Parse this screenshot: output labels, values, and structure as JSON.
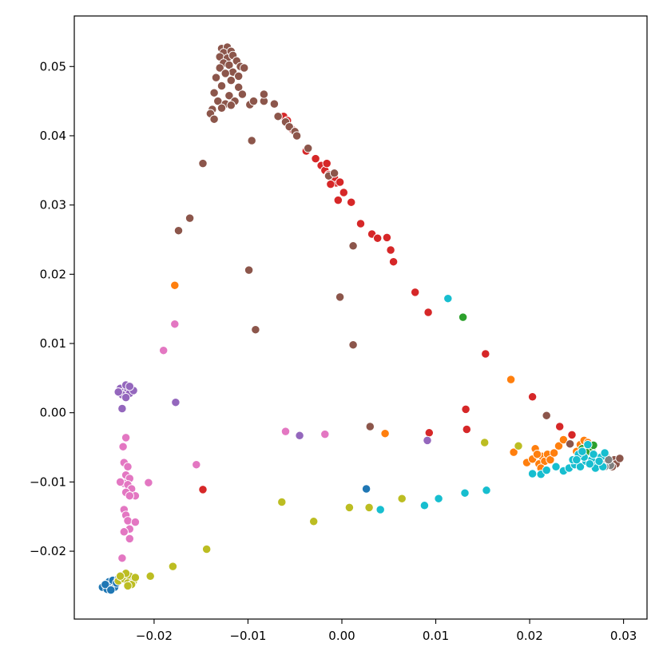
{
  "chart_data": {
    "type": "scatter",
    "title": "",
    "xlabel": "",
    "ylabel": "",
    "xlim": [
      -0.0285,
      0.0325
    ],
    "ylim": [
      -0.0298,
      0.0573
    ],
    "grid": false,
    "legend": "none",
    "x_ticks": [
      {
        "value": -0.02,
        "label": "−0.02"
      },
      {
        "value": -0.01,
        "label": "−0.01"
      },
      {
        "value": 0.0,
        "label": "0.00"
      },
      {
        "value": 0.01,
        "label": "0.01"
      },
      {
        "value": 0.02,
        "label": "0.02"
      },
      {
        "value": 0.03,
        "label": "0.03"
      }
    ],
    "y_ticks": [
      {
        "value": -0.02,
        "label": "−0.02"
      },
      {
        "value": -0.01,
        "label": "−0.01"
      },
      {
        "value": 0.0,
        "label": "0.00"
      },
      {
        "value": 0.01,
        "label": "0.01"
      },
      {
        "value": 0.02,
        "label": "0.02"
      },
      {
        "value": 0.03,
        "label": "0.03"
      },
      {
        "value": 0.04,
        "label": "0.04"
      },
      {
        "value": 0.05,
        "label": "0.05"
      }
    ],
    "series": [
      {
        "color": "#1f77b4",
        "points": [
          [
            -0.0255,
            -0.0252
          ],
          [
            -0.025,
            -0.0255
          ],
          [
            -0.0246,
            -0.0248
          ],
          [
            -0.0242,
            -0.0252
          ],
          [
            -0.0248,
            -0.0244
          ],
          [
            -0.0252,
            -0.0248
          ],
          [
            -0.0244,
            -0.0242
          ],
          [
            -0.024,
            -0.0246
          ],
          [
            -0.0238,
            -0.024
          ],
          [
            -0.0246,
            -0.0256
          ],
          [
            -0.0234,
            -0.021
          ],
          [
            0.0026,
            -0.011
          ]
        ]
      },
      {
        "color": "#ff7f0e",
        "points": [
          [
            -0.0178,
            0.0184
          ],
          [
            0.0046,
            -0.003
          ],
          [
            0.018,
            0.0048
          ],
          [
            0.0183,
            -0.0057
          ],
          [
            0.0197,
            -0.0072
          ],
          [
            0.0203,
            -0.0067
          ],
          [
            0.0206,
            -0.0052
          ],
          [
            0.021,
            -0.0074
          ],
          [
            0.0213,
            -0.0063
          ],
          [
            0.0216,
            -0.007
          ],
          [
            0.0219,
            -0.006
          ],
          [
            0.0222,
            -0.0068
          ],
          [
            0.0208,
            -0.006
          ],
          [
            0.0226,
            -0.0058
          ],
          [
            0.0231,
            -0.0048
          ],
          [
            0.0236,
            -0.0039
          ],
          [
            0.0246,
            -0.0068
          ],
          [
            0.0254,
            -0.0046
          ],
          [
            0.0258,
            -0.004
          ],
          [
            0.0262,
            -0.0043
          ],
          [
            0.025,
            -0.0056
          ],
          [
            0.0212,
            -0.008
          ]
        ]
      },
      {
        "color": "#2ca02c",
        "points": [
          [
            0.0129,
            0.0138
          ],
          [
            0.0256,
            -0.0052
          ],
          [
            0.0262,
            -0.0047
          ],
          [
            0.0266,
            -0.0053
          ],
          [
            0.026,
            -0.0057
          ],
          [
            0.0268,
            -0.0047
          ]
        ]
      },
      {
        "color": "#d62728",
        "points": [
          [
            -0.0038,
            0.0378
          ],
          [
            -0.0028,
            0.0367
          ],
          [
            -0.0022,
            0.0357
          ],
          [
            -0.0018,
            0.035
          ],
          [
            -0.0014,
            0.0344
          ],
          [
            -0.001,
            0.0338
          ],
          [
            -0.0006,
            0.0332
          ],
          [
            -0.0016,
            0.036
          ],
          [
            -0.0008,
            0.034
          ],
          [
            -0.0002,
            0.0333
          ],
          [
            -0.0012,
            0.033
          ],
          [
            0.0002,
            0.0318
          ],
          [
            0.001,
            0.0304
          ],
          [
            -0.0004,
            0.0307
          ],
          [
            0.002,
            0.0273
          ],
          [
            0.0032,
            0.0258
          ],
          [
            0.0038,
            0.0252
          ],
          [
            0.0048,
            0.0253
          ],
          [
            0.0052,
            0.0235
          ],
          [
            0.0055,
            0.0218
          ],
          [
            0.0078,
            0.0174
          ],
          [
            0.0092,
            0.0145
          ],
          [
            0.0153,
            0.0085
          ],
          [
            0.0132,
            0.0005
          ],
          [
            0.0093,
            -0.0029
          ],
          [
            0.0133,
            -0.0024
          ],
          [
            0.0203,
            0.0023
          ],
          [
            0.0232,
            -0.002
          ],
          [
            0.0245,
            -0.0032
          ],
          [
            -0.0148,
            -0.0111
          ],
          [
            -0.0062,
            0.0428
          ],
          [
            -0.0058,
            0.0422
          ],
          [
            -0.0052,
            0.0408
          ]
        ]
      },
      {
        "color": "#9467bd",
        "points": [
          [
            -0.0236,
            0.0035
          ],
          [
            -0.0232,
            0.003
          ],
          [
            -0.0228,
            0.0034
          ],
          [
            -0.0234,
            0.0026
          ],
          [
            -0.0226,
            0.0028
          ],
          [
            -0.023,
            0.004
          ],
          [
            -0.0238,
            0.003
          ],
          [
            -0.0222,
            0.0032
          ],
          [
            -0.023,
            0.0022
          ],
          [
            -0.0226,
            0.0038
          ],
          [
            -0.0234,
            0.0006
          ],
          [
            -0.0177,
            0.0015
          ],
          [
            -0.0045,
            -0.0033
          ],
          [
            0.0091,
            -0.004
          ]
        ]
      },
      {
        "color": "#8c564b",
        "points": [
          [
            -0.0128,
            0.0526
          ],
          [
            -0.0122,
            0.0528
          ],
          [
            -0.0126,
            0.052
          ],
          [
            -0.0118,
            0.0522
          ],
          [
            -0.013,
            0.0514
          ],
          [
            -0.0122,
            0.0512
          ],
          [
            -0.0116,
            0.0516
          ],
          [
            -0.0126,
            0.0505
          ],
          [
            -0.012,
            0.0502
          ],
          [
            -0.0112,
            0.0508
          ],
          [
            -0.013,
            0.0498
          ],
          [
            -0.0108,
            0.05
          ],
          [
            -0.0104,
            0.0498
          ],
          [
            -0.0116,
            0.0492
          ],
          [
            -0.0124,
            0.049
          ],
          [
            -0.011,
            0.0486
          ],
          [
            -0.0134,
            0.0484
          ],
          [
            -0.0118,
            0.048
          ],
          [
            -0.0128,
            0.0472
          ],
          [
            -0.011,
            0.047
          ],
          [
            -0.0136,
            0.0462
          ],
          [
            -0.012,
            0.0458
          ],
          [
            -0.0106,
            0.046
          ],
          [
            -0.0132,
            0.045
          ],
          [
            -0.0124,
            0.0446
          ],
          [
            -0.0114,
            0.045
          ],
          [
            -0.0138,
            0.0438
          ],
          [
            -0.0128,
            0.044
          ],
          [
            -0.0118,
            0.0444
          ],
          [
            -0.014,
            0.0432
          ],
          [
            -0.0136,
            0.0424
          ],
          [
            -0.0098,
            0.0445
          ],
          [
            -0.0094,
            0.045
          ],
          [
            -0.0083,
            0.045
          ],
          [
            -0.0083,
            0.046
          ],
          [
            -0.0072,
            0.0446
          ],
          [
            -0.0068,
            0.0428
          ],
          [
            -0.006,
            0.042
          ],
          [
            -0.0056,
            0.0413
          ],
          [
            -0.005,
            0.0406
          ],
          [
            -0.0048,
            0.04
          ],
          [
            -0.0036,
            0.0382
          ],
          [
            -0.0096,
            0.0393
          ],
          [
            -0.0148,
            0.036
          ],
          [
            -0.0162,
            0.0281
          ],
          [
            -0.0174,
            0.0263
          ],
          [
            -0.0099,
            0.0206
          ],
          [
            -0.0092,
            0.012
          ],
          [
            0.0012,
            0.0098
          ],
          [
            -0.0002,
            0.0167
          ],
          [
            -0.0014,
            0.0342
          ],
          [
            -0.0008,
            0.0346
          ],
          [
            0.0012,
            0.0241
          ],
          [
            0.0218,
            -0.0004
          ],
          [
            0.0243,
            -0.0045
          ],
          [
            0.029,
            -0.0068
          ],
          [
            0.0292,
            -0.0074
          ],
          [
            0.0296,
            -0.0066
          ],
          [
            0.0288,
            -0.0078
          ],
          [
            0.003,
            -0.002
          ]
        ]
      },
      {
        "color": "#e377c2",
        "points": [
          [
            -0.023,
            -0.0036
          ],
          [
            -0.0233,
            -0.0049
          ],
          [
            -0.0232,
            -0.0072
          ],
          [
            -0.0228,
            -0.0078
          ],
          [
            -0.023,
            -0.009
          ],
          [
            -0.0226,
            -0.0095
          ],
          [
            -0.0232,
            -0.0102
          ],
          [
            -0.0236,
            -0.01
          ],
          [
            -0.0228,
            -0.0104
          ],
          [
            -0.0224,
            -0.011
          ],
          [
            -0.023,
            -0.0115
          ],
          [
            -0.022,
            -0.012
          ],
          [
            -0.0226,
            -0.012
          ],
          [
            -0.0232,
            -0.014
          ],
          [
            -0.023,
            -0.0148
          ],
          [
            -0.0228,
            -0.0156
          ],
          [
            -0.022,
            -0.0158
          ],
          [
            -0.0226,
            -0.0168
          ],
          [
            -0.0232,
            -0.0172
          ],
          [
            -0.0226,
            -0.0182
          ],
          [
            -0.0234,
            -0.021
          ],
          [
            -0.0206,
            -0.0101
          ],
          [
            -0.0178,
            0.0128
          ],
          [
            -0.019,
            0.009
          ],
          [
            -0.0155,
            -0.0075
          ],
          [
            -0.006,
            -0.0027
          ],
          [
            -0.0018,
            -0.0031
          ]
        ]
      },
      {
        "color": "#7f7f7f",
        "points": [
          [
            0.0276,
            -0.0072
          ],
          [
            0.0282,
            -0.0065
          ],
          [
            0.0286,
            -0.0076
          ],
          [
            0.028,
            -0.0078
          ],
          [
            0.0284,
            -0.0068
          ]
        ]
      },
      {
        "color": "#bcbd22",
        "points": [
          [
            -0.0238,
            -0.0243
          ],
          [
            -0.0232,
            -0.024
          ],
          [
            -0.0226,
            -0.0236
          ],
          [
            -0.0222,
            -0.0243
          ],
          [
            -0.0228,
            -0.0246
          ],
          [
            -0.023,
            -0.0232
          ],
          [
            -0.0224,
            -0.0248
          ],
          [
            -0.0236,
            -0.0236
          ],
          [
            -0.022,
            -0.0238
          ],
          [
            -0.0228,
            -0.025
          ],
          [
            -0.0204,
            -0.0236
          ],
          [
            -0.018,
            -0.0222
          ],
          [
            -0.0144,
            -0.0197
          ],
          [
            -0.0064,
            -0.0129
          ],
          [
            -0.003,
            -0.0157
          ],
          [
            0.0008,
            -0.0137
          ],
          [
            0.0029,
            -0.0137
          ],
          [
            0.0064,
            -0.0124
          ],
          [
            0.0152,
            -0.0043
          ],
          [
            0.0188,
            -0.0048
          ]
        ]
      },
      {
        "color": "#17becf",
        "points": [
          [
            0.0113,
            0.0165
          ],
          [
            0.0041,
            -0.014
          ],
          [
            0.0088,
            -0.0134
          ],
          [
            0.0103,
            -0.0124
          ],
          [
            0.0131,
            -0.0116
          ],
          [
            0.0154,
            -0.0112
          ],
          [
            0.0203,
            -0.0088
          ],
          [
            0.0212,
            -0.0089
          ],
          [
            0.0218,
            -0.0083
          ],
          [
            0.0228,
            -0.0078
          ],
          [
            0.0236,
            -0.0084
          ],
          [
            0.0242,
            -0.008
          ],
          [
            0.0248,
            -0.0075
          ],
          [
            0.0254,
            -0.0078
          ],
          [
            0.026,
            -0.007
          ],
          [
            0.0266,
            -0.0068
          ],
          [
            0.0272,
            -0.0075
          ],
          [
            0.0276,
            -0.0064
          ],
          [
            0.027,
            -0.008
          ],
          [
            0.0264,
            -0.0074
          ],
          [
            0.0258,
            -0.0064
          ],
          [
            0.0252,
            -0.006
          ],
          [
            0.0246,
            -0.0068
          ],
          [
            0.0278,
            -0.0078
          ],
          [
            0.028,
            -0.0058
          ],
          [
            0.0262,
            -0.0046
          ],
          [
            0.0256,
            -0.0056
          ],
          [
            0.0268,
            -0.006
          ],
          [
            0.0274,
            -0.007
          ],
          [
            0.025,
            -0.0068
          ]
        ]
      }
    ]
  }
}
